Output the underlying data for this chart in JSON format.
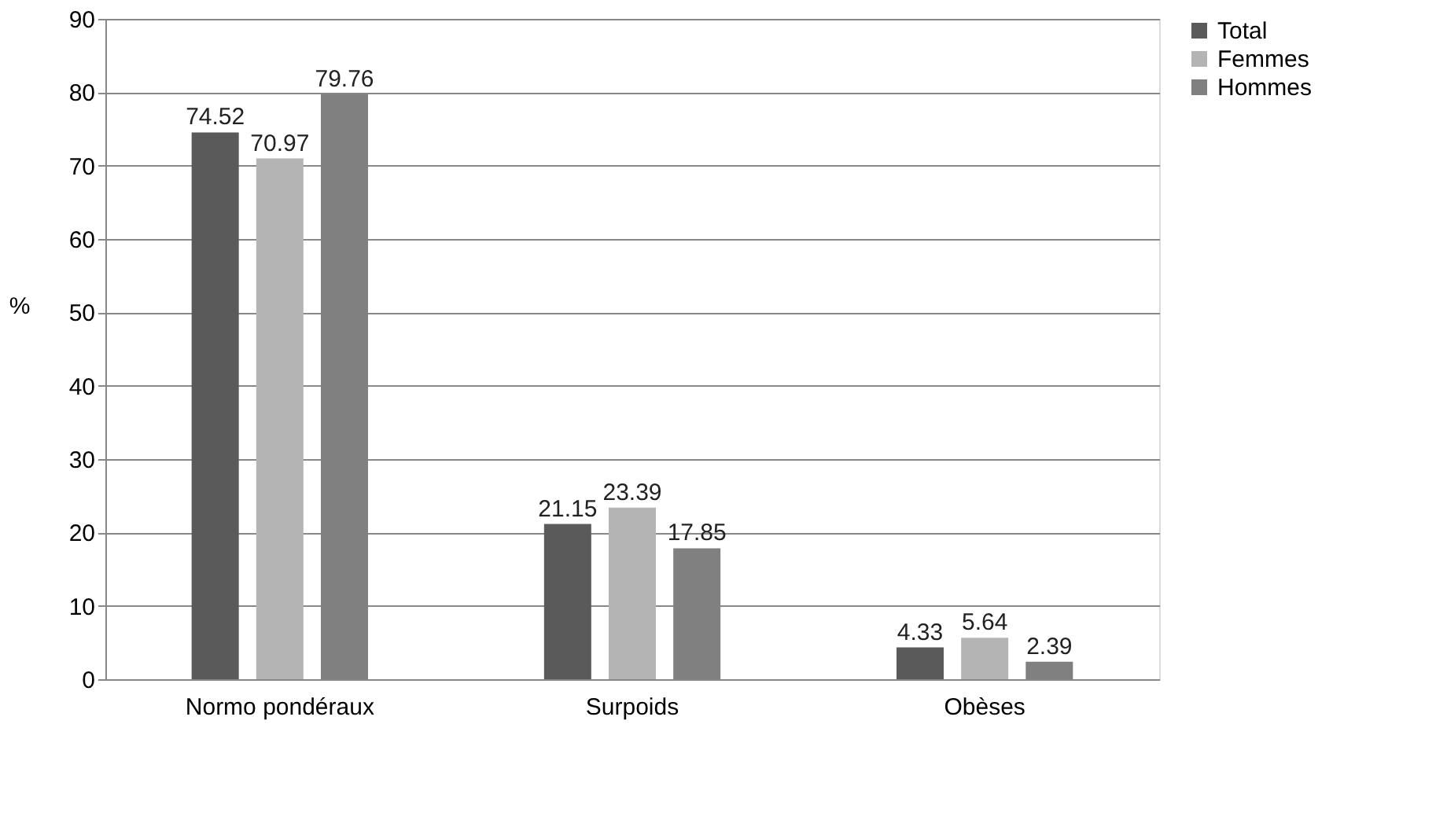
{
  "chart_data": {
    "type": "bar",
    "ylabel": "%",
    "categories": [
      "Normo pondéraux",
      "Surpoids",
      "Obèses"
    ],
    "series": [
      {
        "name": "Total",
        "color": "#5a5a5a",
        "values": [
          74.52,
          21.15,
          4.33
        ]
      },
      {
        "name": "Femmes",
        "color": "#b4b4b4",
        "values": [
          70.97,
          23.39,
          5.64
        ]
      },
      {
        "name": "Hommes",
        "color": "#808080",
        "values": [
          79.76,
          17.85,
          2.39
        ]
      }
    ],
    "ylim": [
      0,
      90
    ],
    "yticks": [
      0,
      10,
      20,
      30,
      40,
      50,
      60,
      70,
      80,
      90
    ],
    "grid": "y",
    "legend": "right",
    "data_labels": true
  }
}
